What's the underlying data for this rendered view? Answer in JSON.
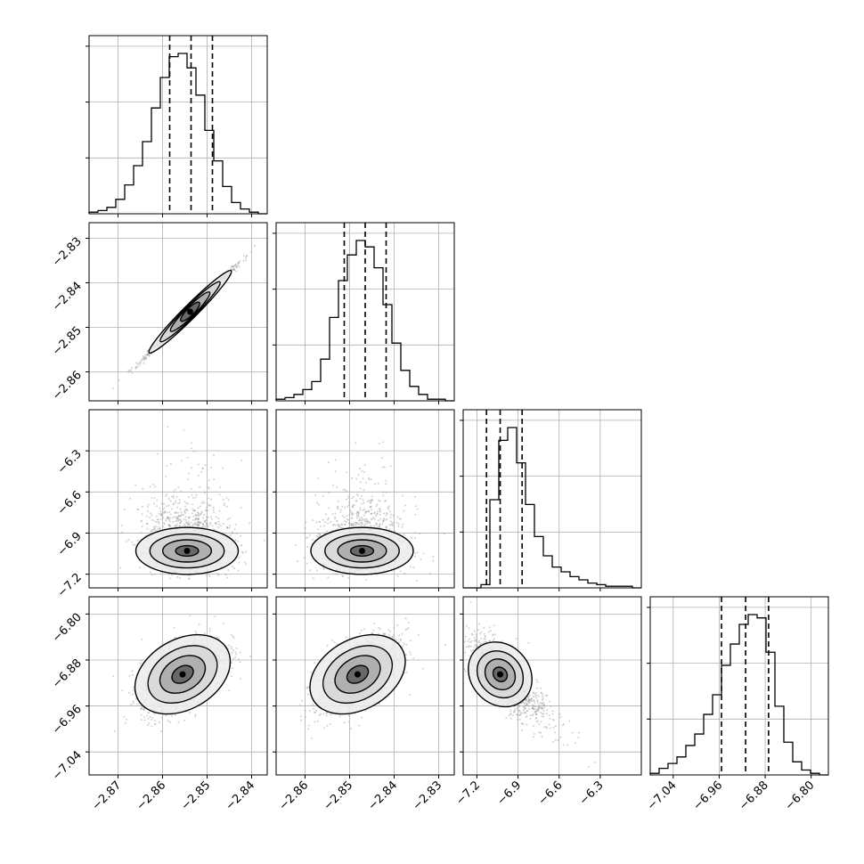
{
  "chart_data": {
    "type": "corner",
    "n_params": 4,
    "grid": true,
    "params": [
      {
        "range": [
          -2.8765,
          -2.8365
        ],
        "ticks": [
          -2.87,
          -2.86,
          -2.85,
          -2.84
        ],
        "tick_labels": [
          "−2.87",
          "−2.86",
          "−2.85",
          "−2.84"
        ],
        "mean": -2.8538,
        "sd": 0.0046,
        "quantiles": [
          -2.8584,
          -2.8536,
          -2.8488
        ]
      },
      {
        "range": [
          -2.8665,
          -2.8265
        ],
        "ticks": [
          -2.86,
          -2.85,
          -2.84,
          -2.83
        ],
        "tick_labels": [
          "−2.86",
          "−2.85",
          "−2.84",
          "−2.83"
        ],
        "mean": -2.8465,
        "sd": 0.0046,
        "quantiles": [
          -2.8512,
          -2.8465,
          -2.8418
        ]
      },
      {
        "range": [
          -7.3,
          -6.0
        ],
        "ticks": [
          -7.2,
          -6.9,
          -6.6,
          -6.3
        ],
        "tick_labels": [
          "−7.2",
          "−6.9",
          "−6.6",
          "−6.3"
        ],
        "mean": -7.03,
        "sd": 0.09,
        "quantiles": [
          -7.13,
          -7.03,
          -6.87
        ]
      },
      {
        "range": [
          -7.08,
          -6.77
        ],
        "ticks": [
          -7.04,
          -6.96,
          -6.88,
          -6.8
        ],
        "tick_labels": [
          "−7.04",
          "−6.96",
          "−6.88",
          "−6.80"
        ],
        "mean": -6.905,
        "sd": 0.032,
        "quantiles": [
          -6.956,
          -6.914,
          -6.874
        ]
      }
    ],
    "histograms": [
      {
        "param": 0,
        "counts": [
          1,
          2,
          4,
          9,
          18,
          30,
          45,
          66,
          85,
          98,
          100,
          91,
          74,
          52,
          33,
          17,
          7,
          3,
          1,
          0
        ]
      },
      {
        "param": 1,
        "counts": [
          1,
          2,
          4,
          7,
          12,
          26,
          52,
          75,
          91,
          100,
          96,
          83,
          60,
          36,
          19,
          9,
          4,
          1,
          1,
          0
        ]
      },
      {
        "param": 2,
        "counts": [
          0,
          0,
          2,
          55,
          92,
          100,
          78,
          52,
          32,
          20,
          13,
          10,
          7,
          5,
          3,
          2,
          1,
          1,
          1,
          0
        ]
      },
      {
        "param": 3,
        "counts": [
          1,
          4,
          7,
          11,
          18,
          25,
          37,
          49,
          67,
          80,
          92,
          98,
          96,
          75,
          42,
          20,
          8,
          3,
          1,
          0
        ]
      }
    ],
    "joint": [
      {
        "x": 0,
        "y": 1,
        "corr": 0.995,
        "centre": [
          -2.8538,
          -2.8465
        ]
      },
      {
        "x": 0,
        "y": 2,
        "corr": 0.0,
        "centre": [
          -2.8545,
          -7.03
        ]
      },
      {
        "x": 1,
        "y": 2,
        "corr": 0.0,
        "centre": [
          -2.8472,
          -7.03
        ]
      },
      {
        "x": 0,
        "y": 3,
        "corr": 0.55,
        "centre": [
          -2.8555,
          -6.905
        ]
      },
      {
        "x": 1,
        "y": 3,
        "corr": 0.55,
        "centre": [
          -2.8482,
          -6.905
        ]
      },
      {
        "x": 2,
        "y": 3,
        "corr": -0.7,
        "centre": [
          -7.03,
          -6.905
        ]
      }
    ]
  }
}
